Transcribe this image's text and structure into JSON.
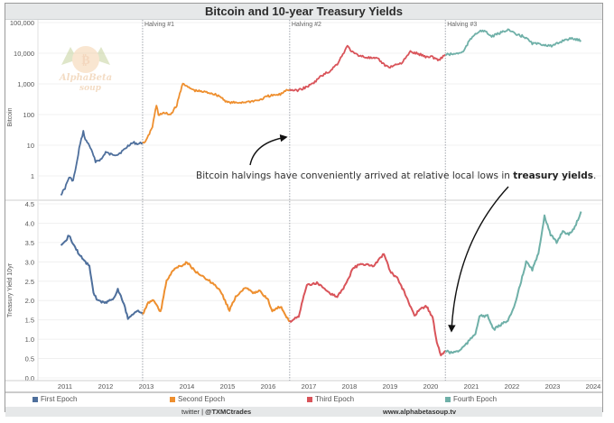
{
  "header": {
    "title": "Bitcoin and 10-year Treasury Yields"
  },
  "annotation": {
    "text_prefix": "Bitcoin halvings have conveniently arrived at relative local lows in ",
    "text_bold": "treasury yields",
    "text_suffix": "."
  },
  "halvings": [
    {
      "label": "Halving #1",
      "date": 2012.91
    },
    {
      "label": "Halving #2",
      "date": 2016.53
    },
    {
      "label": "Halving #3",
      "date": 2020.36
    }
  ],
  "legend": [
    {
      "label": "First Epoch",
      "color": "#4e6f9c"
    },
    {
      "label": "Second Epoch",
      "color": "#ee8f2f"
    },
    {
      "label": "Third Epoch",
      "color": "#d9545a"
    },
    {
      "label": "Fourth Epoch",
      "color": "#6fb0a8"
    }
  ],
  "footer": {
    "twitter_prefix": "twitter | ",
    "twitter_handle": "@TXMCtrades",
    "website": "www.alphabetasoup.tv"
  },
  "watermark": {
    "text": "AlphaBeta soup"
  },
  "chart_data": [
    {
      "type": "line",
      "title": "Bitcoin and 10-year Treasury Yields",
      "ylabel": "Bitcoin",
      "yscale": "log",
      "ylim": [
        0.2,
        100000
      ],
      "yticks": [
        "1",
        "10",
        "100",
        "1,000",
        "10,000",
        "100,000"
      ],
      "xlabel": "",
      "xticks": [
        "2011",
        "2012",
        "2013",
        "2014",
        "2015",
        "2016",
        "2017",
        "2018",
        "2019",
        "2020",
        "2021",
        "2022",
        "2023",
        "2024"
      ],
      "grid": true,
      "series": [
        {
          "name": "First Epoch",
          "color": "#4e6f9c",
          "x": [
            2010.9,
            2011.0,
            2011.1,
            2011.2,
            2011.3,
            2011.35,
            2011.45,
            2011.5,
            2011.6,
            2011.75,
            2011.9,
            2012.0,
            2012.1,
            2012.3,
            2012.45,
            2012.6,
            2012.7,
            2012.8,
            2012.91
          ],
          "y": [
            0.25,
            0.4,
            0.9,
            0.7,
            3,
            8,
            28,
            15,
            10,
            3,
            3.5,
            6,
            5,
            5,
            7,
            11,
            12,
            11,
            12
          ]
        },
        {
          "name": "Second Epoch",
          "color": "#ee8f2f",
          "x": [
            2012.91,
            2013.0,
            2013.15,
            2013.25,
            2013.3,
            2013.45,
            2013.6,
            2013.75,
            2013.9,
            2014.0,
            2014.2,
            2014.4,
            2014.6,
            2014.8,
            2015.0,
            2015.2,
            2015.5,
            2015.8,
            2016.0,
            2016.3,
            2016.45,
            2016.53
          ],
          "y": [
            12,
            14,
            40,
            200,
            100,
            110,
            100,
            200,
            1100,
            800,
            600,
            550,
            500,
            400,
            250,
            240,
            260,
            300,
            400,
            450,
            650,
            650
          ]
        },
        {
          "name": "Third Epoch",
          "color": "#d9545a",
          "x": [
            2016.53,
            2016.7,
            2016.9,
            2017.1,
            2017.3,
            2017.5,
            2017.7,
            2017.95,
            2018.1,
            2018.3,
            2018.5,
            2018.7,
            2018.9,
            2019.0,
            2019.3,
            2019.5,
            2019.7,
            2019.9,
            2020.0,
            2020.2,
            2020.36
          ],
          "y": [
            650,
            600,
            750,
            1000,
            1800,
            2500,
            4500,
            17000,
            10000,
            8000,
            7000,
            6500,
            3800,
            3600,
            5000,
            11000,
            9500,
            7500,
            8000,
            6000,
            9000
          ]
        },
        {
          "name": "Fourth Epoch",
          "color": "#6fb0a8",
          "x": [
            2020.36,
            2020.6,
            2020.8,
            2020.95,
            2021.1,
            2021.3,
            2021.5,
            2021.7,
            2021.9,
            2022.1,
            2022.3,
            2022.5,
            2022.8,
            2023.0,
            2023.3,
            2023.5,
            2023.7
          ],
          "y": [
            9000,
            9500,
            11000,
            25000,
            45000,
            55000,
            35000,
            45000,
            60000,
            40000,
            35000,
            21000,
            19000,
            17000,
            28000,
            30000,
            26000
          ]
        }
      ]
    },
    {
      "type": "line",
      "ylabel": "Treasury Yield 10yr",
      "ylim": [
        0.0,
        4.5
      ],
      "yticks": [
        "0.0",
        "0.5",
        "1.0",
        "1.5",
        "2.0",
        "2.5",
        "3.0",
        "3.5",
        "4.0",
        "4.5"
      ],
      "xticks": [
        "2011",
        "2012",
        "2013",
        "2014",
        "2015",
        "2016",
        "2017",
        "2018",
        "2019",
        "2020",
        "2021",
        "2022",
        "2023",
        "2024"
      ],
      "grid": true,
      "series": [
        {
          "name": "First Epoch",
          "color": "#4e6f9c",
          "x": [
            2010.9,
            2011.0,
            2011.1,
            2011.2,
            2011.35,
            2011.5,
            2011.6,
            2011.7,
            2011.8,
            2012.0,
            2012.2,
            2012.3,
            2012.45,
            2012.55,
            2012.7,
            2012.8,
            2012.91
          ],
          "y": [
            3.4,
            3.5,
            3.7,
            3.45,
            3.2,
            3.0,
            2.9,
            2.2,
            2.0,
            1.95,
            2.05,
            2.3,
            1.9,
            1.55,
            1.65,
            1.75,
            1.65
          ]
        },
        {
          "name": "Second Epoch",
          "color": "#ee8f2f",
          "x": [
            2012.91,
            2013.05,
            2013.2,
            2013.35,
            2013.5,
            2013.7,
            2013.9,
            2014.0,
            2014.2,
            2014.5,
            2014.8,
            2015.05,
            2015.2,
            2015.45,
            2015.6,
            2015.8,
            2016.0,
            2016.1,
            2016.3,
            2016.53
          ],
          "y": [
            1.65,
            1.95,
            2.0,
            1.7,
            2.5,
            2.85,
            2.9,
            3.0,
            2.75,
            2.55,
            2.3,
            1.75,
            2.1,
            2.35,
            2.2,
            2.25,
            2.0,
            1.75,
            1.85,
            1.45
          ]
        },
        {
          "name": "Third Epoch",
          "color": "#d9545a",
          "x": [
            2016.53,
            2016.75,
            2016.95,
            2017.2,
            2017.5,
            2017.7,
            2017.9,
            2018.1,
            2018.3,
            2018.6,
            2018.85,
            2019.0,
            2019.2,
            2019.4,
            2019.6,
            2019.75,
            2019.9,
            2020.05,
            2020.15,
            2020.25,
            2020.36
          ],
          "y": [
            1.45,
            1.6,
            2.4,
            2.45,
            2.2,
            2.1,
            2.4,
            2.85,
            2.95,
            2.9,
            3.2,
            2.75,
            2.55,
            2.1,
            1.6,
            1.8,
            1.85,
            1.55,
            0.9,
            0.6,
            0.7
          ]
        },
        {
          "name": "Fourth Epoch",
          "color": "#6fb0a8",
          "x": [
            2020.36,
            2020.5,
            2020.7,
            2020.9,
            2021.1,
            2021.2,
            2021.4,
            2021.55,
            2021.7,
            2021.9,
            2022.05,
            2022.2,
            2022.35,
            2022.5,
            2022.65,
            2022.8,
            2022.95,
            2023.1,
            2023.25,
            2023.4,
            2023.55,
            2023.7
          ],
          "y": [
            0.7,
            0.65,
            0.7,
            0.9,
            1.15,
            1.6,
            1.6,
            1.25,
            1.35,
            1.5,
            1.8,
            2.4,
            3.0,
            2.8,
            3.2,
            4.2,
            3.7,
            3.5,
            3.8,
            3.7,
            3.9,
            4.3
          ]
        }
      ]
    }
  ]
}
